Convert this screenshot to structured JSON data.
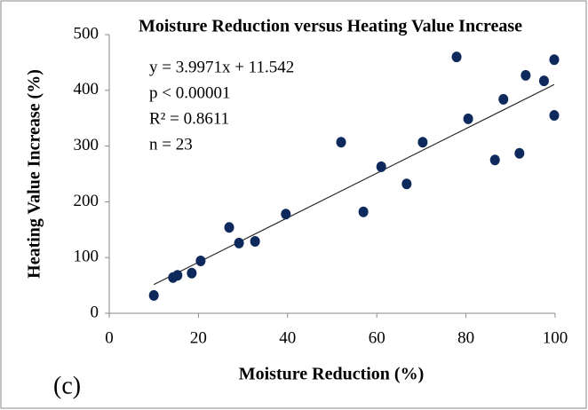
{
  "chart_data": {
    "type": "scatter",
    "title": "Moisture Reduction versus Heating Value Increase",
    "xlabel": "Moisture Reduction (%)",
    "ylabel": "Heating Value Increase (%)",
    "panel_label": "(c)",
    "annotations": [
      "y = 3.9971x + 11.542",
      "p < 0.00001",
      "R² = 0.8611",
      "n = 23"
    ],
    "trendline": {
      "slope": 3.9971,
      "intercept": 11.542
    },
    "x": [
      10,
      14.3,
      15.3,
      18.5,
      20.5,
      26.9,
      29.1,
      32.7,
      39.6,
      52,
      57,
      61,
      66.7,
      70.3,
      77.9,
      80.5,
      86.5,
      88.4,
      92,
      93.4,
      97.5,
      99.8,
      99.8
    ],
    "values": [
      32,
      64,
      68,
      72,
      94,
      154,
      126,
      129,
      178,
      307,
      182,
      263,
      232,
      307,
      460,
      349,
      275,
      384,
      287,
      427,
      417,
      455,
      355
    ],
    "color": "#0e2a5c",
    "xlim": [
      0,
      100
    ],
    "xticks": [
      0,
      20,
      40,
      60,
      80,
      100
    ],
    "ylim": [
      0,
      500
    ],
    "yticks": [
      0,
      100,
      200,
      300,
      400,
      500
    ],
    "grid": false
  }
}
